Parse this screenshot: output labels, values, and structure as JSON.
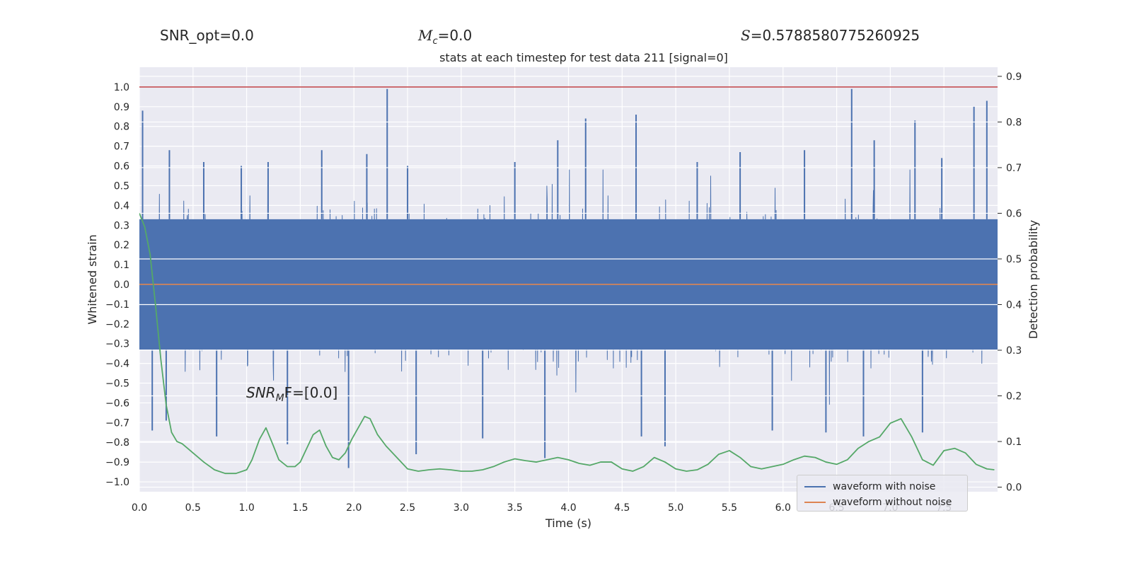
{
  "header": {
    "snr_opt": "SNR_opt=0.0",
    "mc_label": "M",
    "mc_sub": "c",
    "mc_value": "=0.0",
    "s_label": "S",
    "s_value": "=0.5788580775260925"
  },
  "chart_data": {
    "type": "line",
    "title": "stats at each timestep for test data 211 [signal=0]",
    "xlabel": "Time (s)",
    "ylabel": "Whitened strain",
    "y2label": "Detection probability",
    "xlim": [
      0.0,
      8.0
    ],
    "ylim": [
      -1.05,
      1.1
    ],
    "y2lim": [
      -0.01,
      0.92
    ],
    "x_ticks": [
      "0.0",
      "0.5",
      "1.0",
      "1.5",
      "2.0",
      "2.5",
      "3.0",
      "3.5",
      "4.0",
      "4.5",
      "5.0",
      "5.5",
      "6.0",
      "6.5",
      "7.0",
      "7.5"
    ],
    "y_ticks": [
      "1.0",
      "0.9",
      "0.8",
      "0.7",
      "0.6",
      "0.5",
      "0.4",
      "0.3",
      "0.2",
      "0.1",
      "0.0",
      "−0.1",
      "−0.2",
      "−0.3",
      "−0.4",
      "−0.5",
      "−0.6",
      "−0.7",
      "−0.8",
      "−0.9",
      "−1.0"
    ],
    "y2_ticks": [
      "0.9",
      "0.8",
      "0.7",
      "0.6",
      "0.5",
      "0.4",
      "0.3",
      "0.2",
      "0.1",
      "0.0"
    ],
    "grid": true,
    "legend_position": "lower right",
    "snr_mf_label": "SNR",
    "snr_mf_sub": "M",
    "snr_mf_rest": "F=[0.0]",
    "series": [
      {
        "name": "waveform with noise",
        "color": "#4c72b0",
        "axis": "left",
        "band": [
          -0.33,
          0.33
        ],
        "peaks_up": [
          [
            0.03,
            0.88
          ],
          [
            0.28,
            0.68
          ],
          [
            0.6,
            0.62
          ],
          [
            0.95,
            0.6
          ],
          [
            1.2,
            0.62
          ],
          [
            1.7,
            0.68
          ],
          [
            2.12,
            0.66
          ],
          [
            2.31,
            0.99
          ],
          [
            2.5,
            0.6
          ],
          [
            3.5,
            0.62
          ],
          [
            3.9,
            0.73
          ],
          [
            4.16,
            0.84
          ],
          [
            4.63,
            0.86
          ],
          [
            5.2,
            0.62
          ],
          [
            5.6,
            0.67
          ],
          [
            6.2,
            0.68
          ],
          [
            6.64,
            0.99
          ],
          [
            6.85,
            0.73
          ],
          [
            7.23,
            0.83
          ],
          [
            7.48,
            0.64
          ],
          [
            7.78,
            0.9
          ],
          [
            7.9,
            0.93
          ]
        ],
        "peaks_down": [
          [
            0.12,
            -0.74
          ],
          [
            0.25,
            -0.69
          ],
          [
            0.72,
            -0.77
          ],
          [
            1.38,
            -0.81
          ],
          [
            1.95,
            -0.93
          ],
          [
            2.58,
            -0.86
          ],
          [
            3.2,
            -0.78
          ],
          [
            3.78,
            -0.88
          ],
          [
            4.68,
            -0.77
          ],
          [
            4.9,
            -0.82
          ],
          [
            5.9,
            -0.74
          ],
          [
            6.4,
            -0.75
          ],
          [
            6.75,
            -0.77
          ],
          [
            7.3,
            -0.75
          ]
        ]
      },
      {
        "name": "waveform without noise",
        "color": "#dd8452",
        "axis": "left",
        "x": [
          0.0,
          8.0
        ],
        "y": [
          0.0,
          0.0
        ]
      },
      {
        "name": "",
        "color": "#55a868",
        "axis": "right",
        "x": [
          0.0,
          0.05,
          0.1,
          0.15,
          0.2,
          0.25,
          0.3,
          0.35,
          0.4,
          0.5,
          0.6,
          0.7,
          0.8,
          0.9,
          1.0,
          1.05,
          1.12,
          1.18,
          1.25,
          1.3,
          1.38,
          1.45,
          1.5,
          1.56,
          1.62,
          1.68,
          1.74,
          1.8,
          1.86,
          1.92,
          1.98,
          2.04,
          2.1,
          2.15,
          2.22,
          2.3,
          2.4,
          2.5,
          2.6,
          2.7,
          2.8,
          2.9,
          3.0,
          3.1,
          3.2,
          3.3,
          3.4,
          3.5,
          3.6,
          3.7,
          3.8,
          3.9,
          4.0,
          4.1,
          4.2,
          4.3,
          4.4,
          4.5,
          4.6,
          4.7,
          4.8,
          4.9,
          5.0,
          5.1,
          5.2,
          5.3,
          5.4,
          5.5,
          5.6,
          5.7,
          5.8,
          5.9,
          6.0,
          6.1,
          6.2,
          6.3,
          6.4,
          6.5,
          6.6,
          6.7,
          6.8,
          6.9,
          7.0,
          7.1,
          7.2,
          7.3,
          7.4,
          7.5,
          7.6,
          7.7,
          7.8,
          7.9,
          8.0
        ],
        "y": [
          0.6,
          0.57,
          0.51,
          0.4,
          0.28,
          0.18,
          0.12,
          0.1,
          0.095,
          0.075,
          0.055,
          0.038,
          0.03,
          0.03,
          0.038,
          0.06,
          0.105,
          0.13,
          0.09,
          0.06,
          0.045,
          0.045,
          0.055,
          0.085,
          0.115,
          0.125,
          0.09,
          0.065,
          0.06,
          0.075,
          0.105,
          0.13,
          0.155,
          0.15,
          0.115,
          0.09,
          0.065,
          0.04,
          0.035,
          0.038,
          0.04,
          0.038,
          0.035,
          0.035,
          0.038,
          0.045,
          0.055,
          0.062,
          0.058,
          0.055,
          0.06,
          0.065,
          0.06,
          0.052,
          0.048,
          0.055,
          0.055,
          0.04,
          0.035,
          0.045,
          0.065,
          0.055,
          0.04,
          0.035,
          0.038,
          0.05,
          0.072,
          0.08,
          0.065,
          0.045,
          0.04,
          0.045,
          0.05,
          0.06,
          0.068,
          0.065,
          0.055,
          0.05,
          0.06,
          0.085,
          0.1,
          0.11,
          0.14,
          0.15,
          0.11,
          0.06,
          0.048,
          0.08,
          0.085,
          0.075,
          0.05,
          0.04,
          0.038
        ]
      }
    ],
    "threshold": {
      "y": 1.0,
      "color": "#c44e52"
    }
  }
}
